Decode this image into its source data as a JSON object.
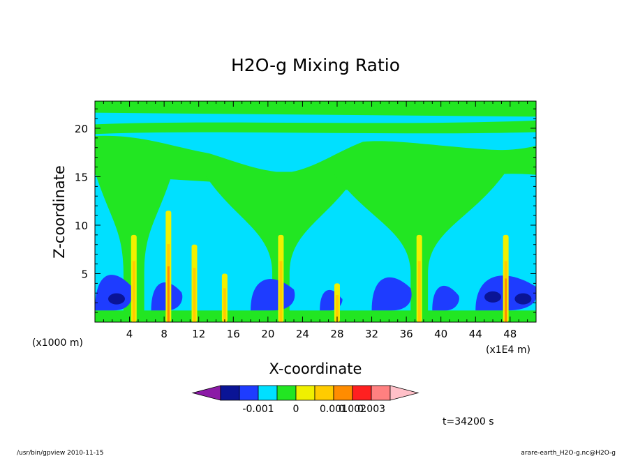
{
  "chart_data": {
    "type": "heatmap",
    "title": "H2O-g Mixing Ratio",
    "xlabel": "X-coordinate",
    "ylabel": "Z-coordinate",
    "x_unit_left": "(x1000 m)",
    "x_unit_right": "(x1E4 m)",
    "xlim": [
      0,
      51
    ],
    "ylim": [
      0,
      22.8
    ],
    "x_ticks": [
      "4",
      "8",
      "12",
      "16",
      "20",
      "24",
      "28",
      "32",
      "36",
      "40",
      "44",
      "48"
    ],
    "y_ticks": [
      "5",
      "10",
      "15",
      "20"
    ],
    "colorbar": {
      "levels": [
        "-0.001",
        "0",
        "0.001",
        "0.002",
        "0.003"
      ],
      "colors": [
        "#8b1aa6",
        "#0a1496",
        "#1e3cff",
        "#00e0ff",
        "#22e622",
        "#f0f000",
        "#ffcc00",
        "#ff8c00",
        "#ff2020",
        "#ff8080",
        "#ffc0c8"
      ]
    },
    "field_colors": {
      "background": "#00e0ff",
      "low": "#1e3cff",
      "very_low": "#0a1496",
      "mid": "#22e622",
      "high1": "#f0f000",
      "high2": "#ffcc00",
      "high3": "#ff8c00"
    },
    "plumes_x": [
      4.5,
      8.5,
      11.5,
      15,
      21.5,
      28,
      37.5,
      47.5
    ],
    "annotation": "t=34200 s",
    "footer_left": "/usr/bin/gpview   2010-11-15",
    "footer_right": "arare-earth_H2O-g.nc@H2O-g"
  }
}
